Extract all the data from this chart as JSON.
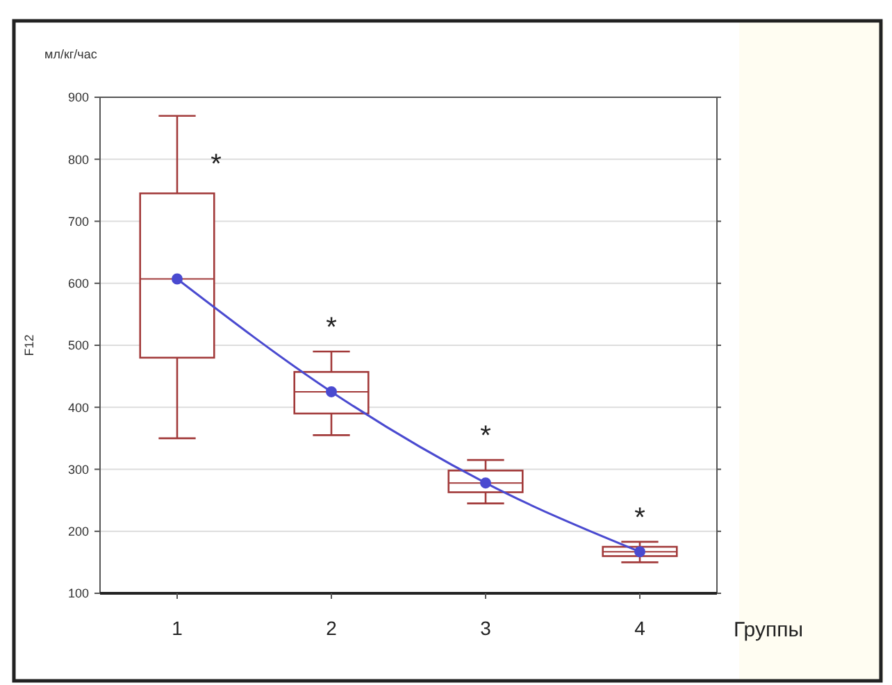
{
  "chart_data": {
    "type": "box",
    "ylabel": "F12",
    "xlabel": "Группы",
    "categories": [
      "1",
      "2",
      "3",
      "4"
    ],
    "series": [
      {
        "color": "#a23a3a",
        "boxes": [
          {
            "low": 350,
            "q1": 480,
            "median": 607,
            "q3": 745,
            "high": 870
          },
          {
            "low": 355,
            "q1": 390,
            "median": 425,
            "q3": 457,
            "high": 490
          },
          {
            "low": 245,
            "q1": 263,
            "median": 278,
            "q3": 298,
            "high": 315
          },
          {
            "low": 150,
            "q1": 160,
            "median": 167,
            "q3": 175,
            "high": 183
          }
        ]
      },
      {
        "type": "line",
        "color": "#4a4ad0",
        "x": [
          "1",
          "2",
          "3",
          "4"
        ],
        "values": [
          607,
          425,
          278,
          167
        ]
      }
    ],
    "ylim": [
      100,
      900
    ],
    "yticks": [
      100,
      200,
      300,
      400,
      500,
      600,
      700,
      800,
      900
    ],
    "grid": "y",
    "marker": "circle",
    "line_style": "solid",
    "annotations": [
      "мл/кг/час",
      "*",
      "*",
      "*",
      "*"
    ]
  }
}
